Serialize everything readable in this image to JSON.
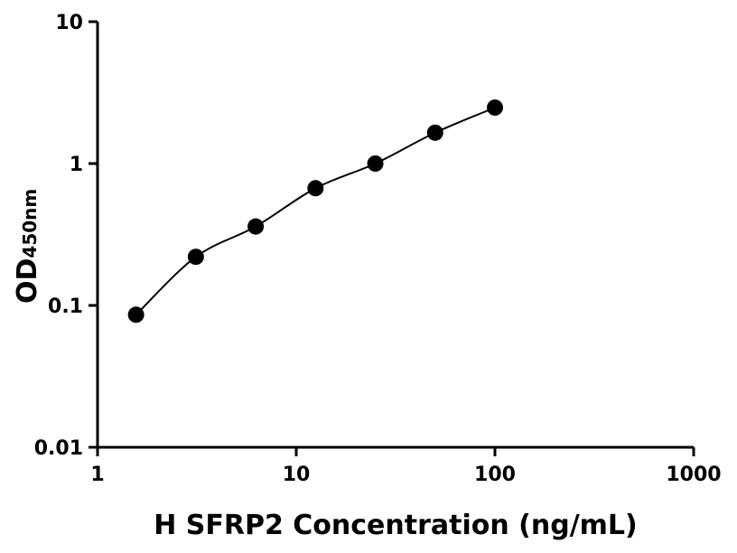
{
  "chart_data": {
    "type": "scatter",
    "x_label": "H SFRP2 Concentration (ng/mL)",
    "y_label": "OD",
    "y_label_subscript": "450nm",
    "x": [
      1.5625,
      3.125,
      6.25,
      12.5,
      25,
      50,
      100
    ],
    "series": [
      {
        "color": "#000000",
        "values": [
          0.086,
          0.22,
          0.36,
          0.67,
          1.0,
          1.65,
          2.48
        ]
      }
    ],
    "fit_curve": true,
    "xscale": "log",
    "yscale": "log",
    "xlim": [
      1,
      1000
    ],
    "xticks": [
      1,
      10,
      100,
      1000
    ],
    "ylim": [
      0.01,
      10
    ],
    "yticks": [
      0.01,
      0.1,
      1,
      10
    ]
  }
}
